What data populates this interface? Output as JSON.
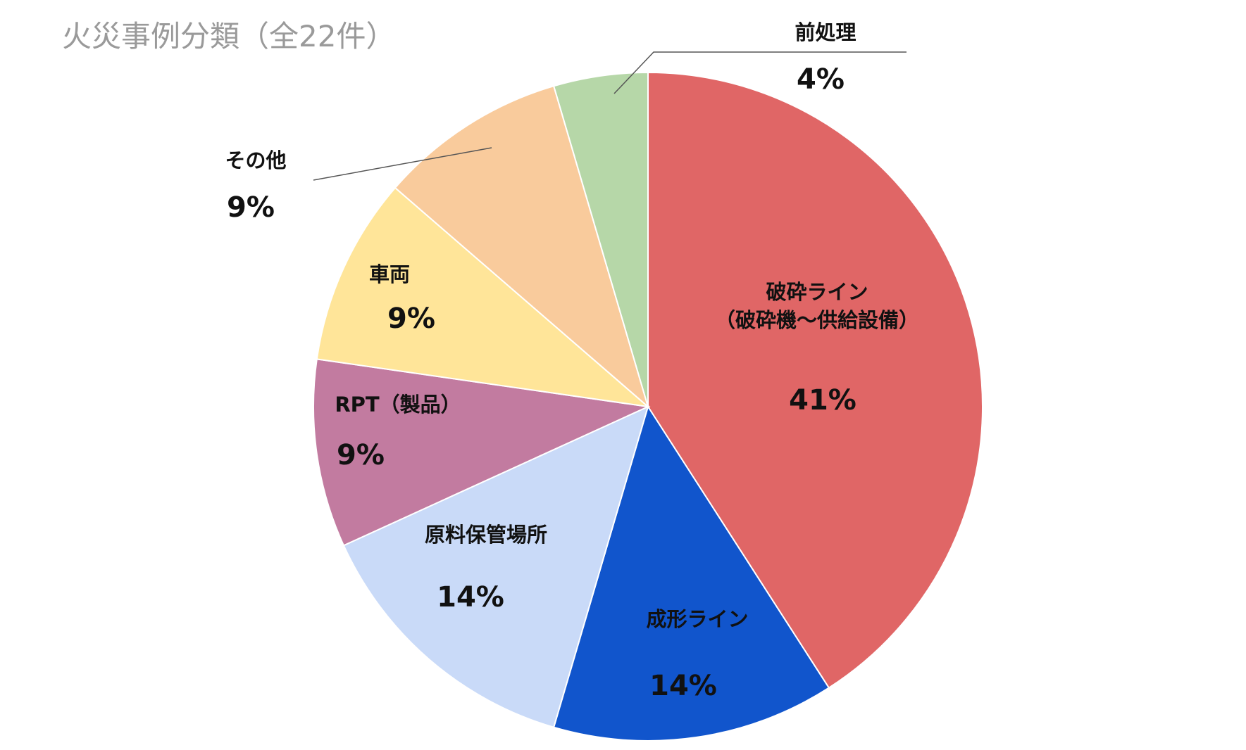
{
  "chart_data": {
    "type": "pie",
    "title": "火災事例分類（全22件）",
    "slices": [
      {
        "label": "破砕ライン\n（破砕機～供給設備）",
        "percent_label": "41%",
        "value": 9,
        "color": "#e06666"
      },
      {
        "label": "成形ライン",
        "percent_label": "14%",
        "value": 3,
        "color": "#1155cc"
      },
      {
        "label": "原料保管場所",
        "percent_label": "14%",
        "value": 3,
        "color": "#c9daf8"
      },
      {
        "label": "RPT（製品）",
        "percent_label": "9%",
        "value": 2,
        "color": "#c27ba0"
      },
      {
        "label": "車両",
        "percent_label": "9%",
        "value": 2,
        "color": "#ffe599"
      },
      {
        "label": "その他",
        "percent_label": "9%",
        "value": 2,
        "color": "#f9cb9c"
      },
      {
        "label": "前処理",
        "percent_label": "4%",
        "value": 1,
        "color": "#b6d7a8"
      }
    ],
    "start_angle": "12 o'clock",
    "direction": "clockwise",
    "legend": "none"
  }
}
